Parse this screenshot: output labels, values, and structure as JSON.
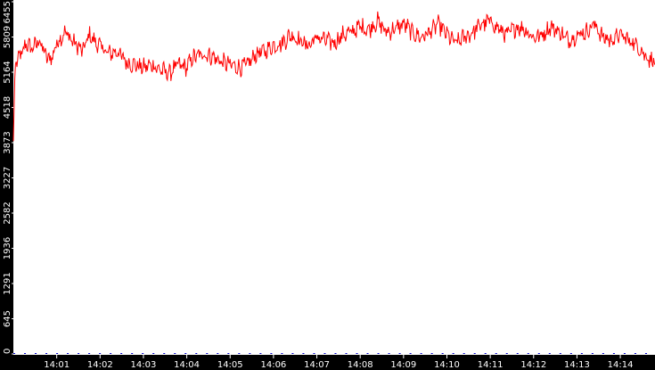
{
  "chart_data": {
    "type": "line",
    "title": "",
    "xlabel": "",
    "ylabel": "",
    "ylim": [
      0,
      6455
    ],
    "y_ticks": [
      0,
      645,
      1291,
      1936,
      2582,
      3227,
      3873,
      4518,
      5164,
      5809,
      6455
    ],
    "x_ticks": [
      "14:01",
      "14:02",
      "14:03",
      "14:04",
      "14:05",
      "14:06",
      "14:07",
      "14:08",
      "14:09",
      "14:10",
      "14:11",
      "14:12",
      "14:13",
      "14:14"
    ],
    "x_range_minutes": [
      0.0,
      14.8
    ],
    "grid": false,
    "legend": "none",
    "colors": {
      "line": "#ff0000",
      "axis_band": "#000000",
      "axis_text": "#ffffff",
      "minor_marks": "#0000cc"
    },
    "series": [
      {
        "x_minutes": [
          0.0,
          0.04,
          0.1,
          0.2,
          0.3,
          0.4,
          0.5,
          0.6,
          0.7,
          0.8,
          0.9,
          1.0,
          1.2,
          1.4,
          1.6,
          1.75,
          1.9,
          2.0,
          2.2,
          2.4,
          2.6,
          2.8,
          3.0,
          3.2,
          3.4,
          3.6,
          3.8,
          4.0,
          4.1,
          4.2,
          4.4,
          4.6,
          4.8,
          5.0,
          5.2,
          5.4,
          5.6,
          5.8,
          6.0,
          6.2,
          6.4,
          6.6,
          6.8,
          7.0,
          7.2,
          7.4,
          7.6,
          7.8,
          8.0,
          8.2,
          8.4,
          8.6,
          8.8,
          9.0,
          9.2,
          9.4,
          9.6,
          9.8,
          10.0,
          10.2,
          10.4,
          10.6,
          10.8,
          11.0,
          11.2,
          11.4,
          11.6,
          11.8,
          12.0,
          12.2,
          12.4,
          12.6,
          12.8,
          13.0,
          13.2,
          13.4,
          13.6,
          13.8,
          14.0,
          14.2,
          14.4,
          14.6,
          14.8
        ],
        "values": [
          3900,
          5300,
          5400,
          5500,
          5700,
          5600,
          5650,
          5750,
          5550,
          5400,
          5450,
          5700,
          5900,
          5700,
          5550,
          5850,
          5700,
          5650,
          5500,
          5550,
          5350,
          5300,
          5250,
          5300,
          5200,
          5150,
          5300,
          5250,
          5400,
          5450,
          5500,
          5450,
          5350,
          5300,
          5250,
          5300,
          5500,
          5550,
          5650,
          5700,
          5850,
          5750,
          5650,
          5800,
          5750,
          5700,
          5850,
          5900,
          6000,
          5950,
          6100,
          5900,
          5950,
          6050,
          5900,
          5800,
          5900,
          6050,
          5850,
          5700,
          5800,
          5900,
          6050,
          6100,
          5950,
          5850,
          6000,
          5950,
          5800,
          5850,
          6000,
          5900,
          5750,
          5850,
          5900,
          6050,
          5800,
          5750,
          5850,
          5750,
          5650,
          5450,
          5350
        ]
      }
    ]
  }
}
